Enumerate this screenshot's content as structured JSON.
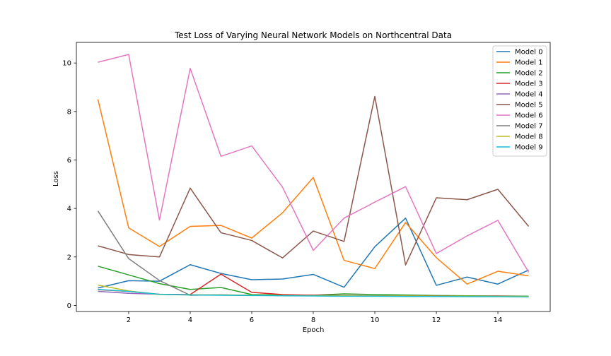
{
  "chart_data": {
    "type": "line",
    "title": "Test Loss of Varying Neural Network Models on Northcentral Data",
    "xlabel": "Epoch",
    "ylabel": "Loss",
    "xlim": [
      0.3,
      15.7
    ],
    "ylim": [
      -0.25,
      10.85
    ],
    "x_ticks": [
      2,
      4,
      6,
      8,
      10,
      12,
      14
    ],
    "y_ticks": [
      0,
      2,
      4,
      6,
      8,
      10
    ],
    "grid": false,
    "legend_position": "top-right",
    "x": [
      1,
      2,
      3,
      4,
      5,
      6,
      7,
      8,
      9,
      10,
      11,
      12,
      13,
      14,
      15
    ],
    "series": [
      {
        "name": "Model 0",
        "color": "#1f77b4",
        "values": [
          0.72,
          1.02,
          1.0,
          1.68,
          1.32,
          1.06,
          1.09,
          1.28,
          0.75,
          2.42,
          3.6,
          0.83,
          1.17,
          0.88,
          1.46
        ]
      },
      {
        "name": "Model 1",
        "color": "#ff7f0e",
        "values": [
          8.5,
          3.2,
          2.43,
          3.26,
          3.3,
          2.78,
          3.82,
          5.28,
          1.86,
          1.52,
          3.42,
          1.97,
          0.88,
          1.41,
          1.22
        ]
      },
      {
        "name": "Model 2",
        "color": "#2ca02c",
        "values": [
          1.62,
          1.26,
          0.9,
          0.66,
          0.74,
          0.45,
          0.43,
          0.42,
          0.48,
          0.45,
          0.43,
          0.41,
          0.4,
          0.39,
          0.38
        ]
      },
      {
        "name": "Model 3",
        "color": "#d62728",
        "values": [
          0.65,
          0.58,
          0.46,
          0.45,
          1.29,
          0.54,
          0.45,
          0.42,
          0.41,
          0.4,
          0.39,
          0.39,
          0.38,
          0.38,
          0.37
        ]
      },
      {
        "name": "Model 4",
        "color": "#9467bd",
        "values": [
          0.58,
          0.5,
          0.46,
          0.44,
          0.43,
          0.42,
          0.41,
          0.4,
          0.4,
          0.39,
          0.39,
          0.38,
          0.38,
          0.37,
          0.37
        ]
      },
      {
        "name": "Model 5",
        "color": "#8c564b",
        "values": [
          2.46,
          2.1,
          2.0,
          4.84,
          3.0,
          2.68,
          1.96,
          3.07,
          2.64,
          8.62,
          1.67,
          4.44,
          4.36,
          4.79,
          3.26
        ]
      },
      {
        "name": "Model 6",
        "color": "#e377c2",
        "values": [
          10.03,
          10.35,
          3.52,
          9.78,
          6.15,
          6.58,
          4.88,
          2.27,
          3.6,
          4.26,
          4.9,
          2.14,
          2.87,
          3.51,
          1.37
        ]
      },
      {
        "name": "Model 7",
        "color": "#7f7f7f",
        "values": [
          3.9,
          1.93,
          1.03,
          0.42,
          0.44,
          0.42,
          0.41,
          0.4,
          0.4,
          0.39,
          0.39,
          0.38,
          0.38,
          0.37,
          0.37
        ]
      },
      {
        "name": "Model 8",
        "color": "#bcbd22",
        "values": [
          0.84,
          0.6,
          0.45,
          0.44,
          0.43,
          0.42,
          0.41,
          0.4,
          0.4,
          0.39,
          0.39,
          0.38,
          0.38,
          0.37,
          0.37
        ]
      },
      {
        "name": "Model 9",
        "color": "#17becf",
        "values": [
          0.66,
          0.58,
          0.46,
          0.43,
          0.42,
          0.41,
          0.4,
          0.39,
          0.38,
          0.38,
          0.37,
          0.37,
          0.36,
          0.36,
          0.35
        ]
      }
    ]
  }
}
